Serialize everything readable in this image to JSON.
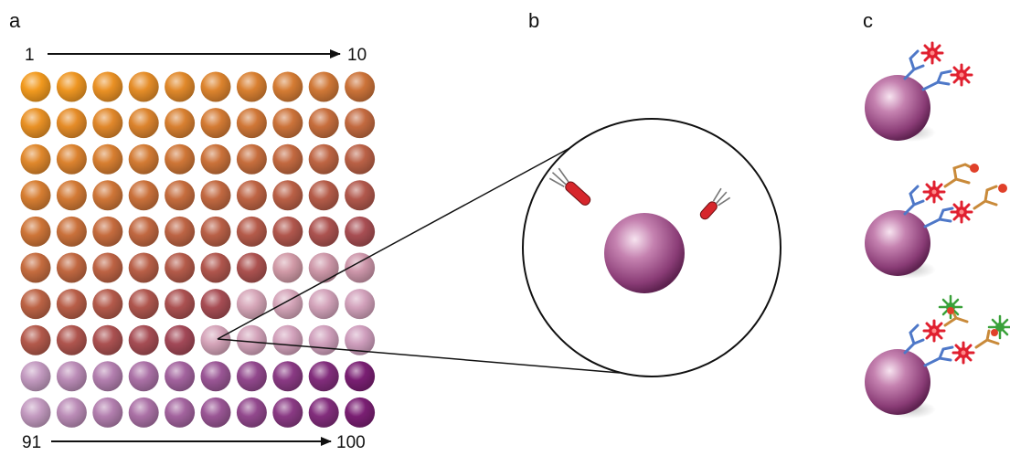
{
  "panels": {
    "a": {
      "label": "a",
      "start_label": "1",
      "end_label": "10",
      "bottom_start_label": "91",
      "bottom_end_label": "100"
    },
    "b": {
      "label": "b"
    },
    "c": {
      "label": "c"
    }
  },
  "grid": {
    "rows": 10,
    "cols": 10,
    "zoom_bead_row": 8,
    "zoom_bead_col": 6
  },
  "colors": {
    "orange": "#f29a1f",
    "purple": "#7a1f73",
    "pale_pink": "#f2d8ec",
    "bead_large": "#a04d8b",
    "antibody": "#4e78c8",
    "detection_antibody": "#c98a3a",
    "antigen": "#e0202f",
    "streptavidin": "#3aa13a",
    "biotin": "#e0402a",
    "probe_red": "#d6262c"
  },
  "icons": {
    "bead": "sphere-bead-icon",
    "capture_antibody": "y-shaped-antibody-icon",
    "antigen": "spiky-antigen-icon",
    "reporter": "streptavidin-reporter-icon",
    "laser": "laser-probe-icon"
  }
}
